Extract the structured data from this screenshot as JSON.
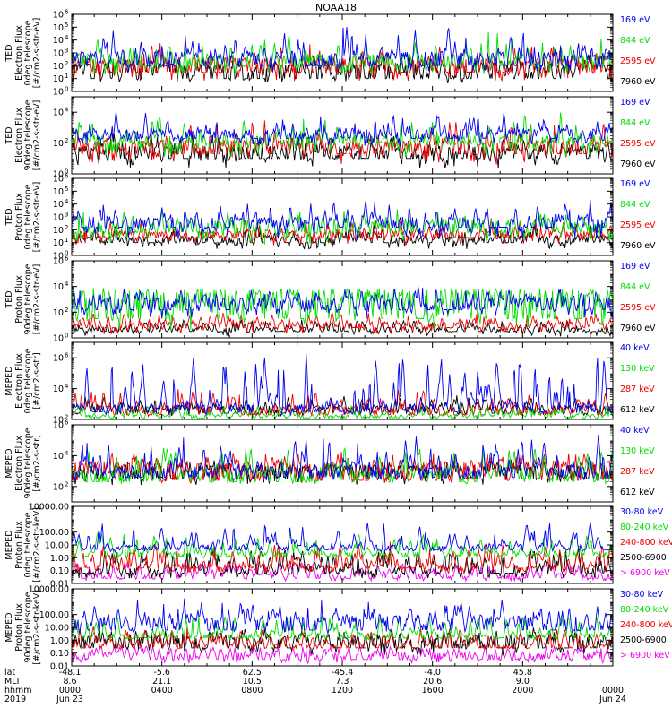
{
  "title": "NOAA18",
  "colors": {
    "black": "#000000",
    "red": "#ee0000",
    "green": "#00dd00",
    "blue": "#0000ee",
    "magenta": "#ee00ee"
  },
  "chart_data": [
    {
      "type": "line",
      "id": "ted-e-0",
      "ylabel": [
        "TED",
        "Electron Flux",
        "0deg telescope",
        "[#/cm2-s-str-eV]"
      ],
      "scale": "log",
      "ylim": [
        1,
        1000000
      ],
      "yticks": [
        {
          "v": 1,
          "b": "10",
          "e": "0"
        },
        {
          "v": 10,
          "b": "10",
          "e": "1"
        },
        {
          "v": 100,
          "b": "10",
          "e": "2"
        },
        {
          "v": 1000,
          "b": "10",
          "e": "3"
        },
        {
          "v": 10000,
          "b": "10",
          "e": "4"
        },
        {
          "v": 100000,
          "b": "10",
          "e": "5"
        },
        {
          "v": 1000000,
          "b": "10",
          "e": "6"
        }
      ],
      "series": [
        {
          "name": "7960 eV",
          "color": "#000000",
          "base": 1,
          "noise": [
            0.6,
            2.2
          ],
          "spike": 6,
          "peak": 3.3,
          "count": 150
        },
        {
          "name": "2595 eV",
          "color": "#ee0000",
          "base": 1.5,
          "noise": [
            0.8,
            2.6
          ],
          "spike": 6,
          "peak": 3.9,
          "count": 150
        },
        {
          "name": "844 eV",
          "color": "#00dd00",
          "base": 2,
          "noise": [
            1.2,
            2.9
          ],
          "spike": 5,
          "peak": 4.7,
          "count": 150
        },
        {
          "name": "169 eV",
          "color": "#0000ee",
          "base": 2,
          "noise": [
            1.5,
            3.1
          ],
          "spike": 5,
          "peak": 5.4,
          "count": 150
        }
      ]
    },
    {
      "type": "line",
      "id": "ted-e-90",
      "ylabel": [
        "TED",
        "Electron Flux",
        "90deg telescope",
        "[#/cm2-s-str-eV]"
      ],
      "scale": "log",
      "ylim": [
        1,
        100000
      ],
      "yticks": [
        {
          "v": 1,
          "b": "10",
          "e": "0"
        },
        {
          "v": 100,
          "b": "10",
          "e": "2"
        },
        {
          "v": 10000,
          "b": "10",
          "e": "4"
        }
      ],
      "series": [
        {
          "name": "7960 eV",
          "color": "#000000",
          "base": 1,
          "noise": [
            0.3,
            1.8
          ],
          "spike": 6,
          "peak": 3.0,
          "count": 150
        },
        {
          "name": "2595 eV",
          "color": "#ee0000",
          "base": 1.3,
          "noise": [
            0.6,
            2.2
          ],
          "spike": 6,
          "peak": 3.6,
          "count": 150
        },
        {
          "name": "844 eV",
          "color": "#00dd00",
          "base": 2,
          "noise": [
            1.1,
            2.5
          ],
          "spike": 5,
          "peak": 4.3,
          "count": 150
        },
        {
          "name": "169 eV",
          "color": "#0000ee",
          "base": 2.3,
          "noise": [
            1.8,
            2.9
          ],
          "spike": 5,
          "peak": 4.2,
          "count": 150
        }
      ]
    },
    {
      "type": "line",
      "id": "ted-p-0",
      "ylabel": [
        "TED",
        "Proton Flux",
        "0deg telescope",
        "[#/cm2-s-str-eV]"
      ],
      "scale": "log",
      "ylim": [
        1,
        1000000
      ],
      "yticks": [
        {
          "v": 1,
          "b": "10",
          "e": "0"
        },
        {
          "v": 10,
          "b": "10",
          "e": "1"
        },
        {
          "v": 100,
          "b": "10",
          "e": "2"
        },
        {
          "v": 1000,
          "b": "10",
          "e": "3"
        },
        {
          "v": 10000,
          "b": "10",
          "e": "4"
        },
        {
          "v": 100000,
          "b": "10",
          "e": "5"
        },
        {
          "v": 1000000,
          "b": "10",
          "e": "6"
        }
      ],
      "series": [
        {
          "name": "7960 eV",
          "color": "#000000",
          "base": 1,
          "noise": [
            0.5,
            1.5
          ],
          "spike": 4,
          "peak": 2.5,
          "count": 150
        },
        {
          "name": "2595 eV",
          "color": "#ee0000",
          "base": 1.4,
          "noise": [
            0.8,
            1.9
          ],
          "spike": 4,
          "peak": 3.0,
          "count": 150
        },
        {
          "name": "844 eV",
          "color": "#00dd00",
          "base": 1.8,
          "noise": [
            0.9,
            2.6
          ],
          "spike": 3,
          "peak": 3.6,
          "count": 150
        },
        {
          "name": "169 eV",
          "color": "#0000ee",
          "base": 2.2,
          "noise": [
            1.3,
            3.0
          ],
          "spike": 3,
          "peak": 4.4,
          "count": 150
        }
      ]
    },
    {
      "type": "line",
      "id": "ted-p-90",
      "ylabel": [
        "TED",
        "Proton Flux",
        "90deg telescope",
        "[#/cm2-s-str-eV]"
      ],
      "scale": "log",
      "ylim": [
        1,
        1000000
      ],
      "yticks": [
        {
          "v": 1,
          "b": "10",
          "e": "0"
        },
        {
          "v": 100,
          "b": "10",
          "e": "2"
        },
        {
          "v": 10000,
          "b": "10",
          "e": "4"
        },
        {
          "v": 1000000,
          "b": "10",
          "e": "6"
        }
      ],
      "series": [
        {
          "name": "7960 eV",
          "color": "#000000",
          "base": 0.5,
          "noise": [
            0.1,
            0.8
          ],
          "spike": 2,
          "peak": 1.5,
          "count": 150
        },
        {
          "name": "2595 eV",
          "color": "#ee0000",
          "base": 0.8,
          "noise": [
            0.3,
            1.2
          ],
          "spike": 2,
          "peak": 2.0,
          "count": 150
        },
        {
          "name": "844 eV",
          "color": "#00dd00",
          "base": 1.5,
          "noise": [
            0.6,
            3.8
          ],
          "spike": 2,
          "peak": 3.9,
          "count": 150
        },
        {
          "name": "169 eV",
          "color": "#0000ee",
          "base": 2.2,
          "noise": [
            1.5,
            3.1
          ],
          "spike": 2,
          "peak": 4.0,
          "count": 150
        }
      ]
    },
    {
      "type": "line",
      "id": "meped-e-0",
      "ylabel": [
        "MEPED",
        "Electron Flux",
        "0deg telescope",
        "[#/cm2-s-str]"
      ],
      "scale": "log",
      "ylim": [
        100,
        10000000
      ],
      "yticks": [
        {
          "v": 100,
          "b": "10",
          "e": "2"
        },
        {
          "v": 10000,
          "b": "10",
          "e": "4"
        },
        {
          "v": 1000000,
          "b": "10",
          "e": "6"
        }
      ],
      "series": [
        {
          "name": "612 keV",
          "color": "#000000",
          "base": 2.4,
          "noise": [
            2.2,
            2.9
          ],
          "spike": 3,
          "peak": 3.6,
          "count": 150
        },
        {
          "name": "287 keV",
          "color": "#ee0000",
          "base": 2.3,
          "noise": [
            2.2,
            2.8
          ],
          "spike": 3,
          "peak": 4.0,
          "count": 150
        },
        {
          "name": "130 keV",
          "color": "#00dd00",
          "base": 2.1,
          "noise": [
            2.05,
            2.3
          ],
          "spike": 2,
          "peak": 3.0,
          "count": 150
        },
        {
          "name": "40 keV",
          "color": "#0000ee",
          "base": 2.5,
          "noise": [
            2.3,
            3.0
          ],
          "spike": 3,
          "peak": 6.6,
          "count": 150
        }
      ]
    },
    {
      "type": "line",
      "id": "meped-e-90",
      "ylabel": [
        "MEPED",
        "Electron Flux",
        "90deg telescope",
        "[#/cm2-s-str]"
      ],
      "scale": "log",
      "ylim": [
        10,
        1000000
      ],
      "yticks": [
        {
          "v": 100,
          "b": "10",
          "e": "2"
        },
        {
          "v": 10000,
          "b": "10",
          "e": "4"
        },
        {
          "v": 1000000,
          "b": "10",
          "e": "6"
        }
      ],
      "series": [
        {
          "name": "612 keV",
          "color": "#000000",
          "base": 2.5,
          "noise": [
            2.1,
            3.4
          ],
          "spike": 3,
          "peak": 3.8,
          "count": 150
        },
        {
          "name": "287 keV",
          "color": "#ee0000",
          "base": 2.4,
          "noise": [
            2.2,
            3.6
          ],
          "spike": 3,
          "peak": 4.4,
          "count": 150
        },
        {
          "name": "130 keV",
          "color": "#00dd00",
          "base": 2.3,
          "noise": [
            2.15,
            3.0
          ],
          "spike": 3,
          "peak": 4.9,
          "count": 150
        },
        {
          "name": "40 keV",
          "color": "#0000ee",
          "base": 2.6,
          "noise": [
            2.4,
            3.3
          ],
          "spike": 3,
          "peak": 5.4,
          "count": 150
        }
      ]
    },
    {
      "type": "line",
      "id": "meped-p-0",
      "ylabel": [
        "MEPED",
        "Proton Flux",
        "0deg telescope",
        "[#/cm2-s-str-keV]"
      ],
      "scale": "log",
      "ylim": [
        0.01,
        10000
      ],
      "yticks": [
        {
          "v": 10000,
          "t": "10000.00"
        },
        {
          "v": 100,
          "t": "100.00"
        },
        {
          "v": 10,
          "t": "10.00"
        },
        {
          "v": 1,
          "t": "1.00"
        },
        {
          "v": 0.1,
          "t": "0.10"
        },
        {
          "v": 0.01,
          "t": "0.01"
        }
      ],
      "series": [
        {
          "name": "> 6900 keV",
          "color": "#ee00ee",
          "base": -1.6,
          "noise": [
            -1.8,
            -1.2
          ],
          "spike": 1,
          "peak": -0.3,
          "count": 150
        },
        {
          "name": "2500-6900",
          "color": "#000000",
          "base": -1.2,
          "noise": [
            -1.6,
            -0.8
          ],
          "spike": 1,
          "peak": 0.8,
          "count": 150
        },
        {
          "name": "240-800 keV",
          "color": "#ee0000",
          "base": -0.8,
          "noise": [
            -1.2,
            -0.5
          ],
          "spike": 2,
          "peak": 1.3,
          "count": 150
        },
        {
          "name": "80-240 keV",
          "color": "#00dd00",
          "base": 0.1,
          "noise": [
            0.0,
            0.4
          ],
          "spike": 2,
          "peak": 2.0,
          "count": 150
        },
        {
          "name": "30-80 keV",
          "color": "#0000ee",
          "base": 0.6,
          "noise": [
            0.45,
            1.0
          ],
          "spike": 3,
          "peak": 3.0,
          "count": 150
        }
      ]
    },
    {
      "type": "line",
      "id": "meped-p-90",
      "ylabel": [
        "MEPED",
        "Proton Flux",
        "90deg telescope",
        "[#/cm2-s-str-keV]"
      ],
      "scale": "log",
      "ylim": [
        0.01,
        10000
      ],
      "yticks": [
        {
          "v": 10000,
          "t": "10000.00"
        },
        {
          "v": 100,
          "t": "100.00"
        },
        {
          "v": 10,
          "t": "10.00"
        },
        {
          "v": 1,
          "t": "1.00"
        },
        {
          "v": 0.1,
          "t": "0.10"
        },
        {
          "v": 0.01,
          "t": "0.01"
        }
      ],
      "series": [
        {
          "name": "> 6900 keV",
          "color": "#ee00ee",
          "base": -1.5,
          "noise": [
            -1.8,
            -1.0
          ],
          "spike": 1,
          "peak": -0.4,
          "count": 150
        },
        {
          "name": "2500-6900",
          "color": "#000000",
          "base": -0.6,
          "noise": [
            -1.2,
            0.3
          ],
          "spike": 2,
          "peak": 1.0,
          "count": 150
        },
        {
          "name": "240-800 keV",
          "color": "#ee0000",
          "base": -0.6,
          "noise": [
            -0.7,
            -0.3
          ],
          "spike": 2,
          "peak": 1.1,
          "count": 150
        },
        {
          "name": "80-240 keV",
          "color": "#00dd00",
          "base": 0.2,
          "noise": [
            0.05,
            0.45
          ],
          "spike": 2,
          "peak": 2.0,
          "count": 150
        },
        {
          "name": "30-80 keV",
          "color": "#0000ee",
          "base": 0.8,
          "noise": [
            0.5,
            1.9
          ],
          "spike": 3,
          "peak": 3.4,
          "count": 150
        }
      ]
    }
  ],
  "x_axis": {
    "row_labels": [
      "lat",
      "MLT",
      "hhmm",
      "2019"
    ],
    "ticks": [
      {
        "lat": "-48.1",
        "mlt": "8.6",
        "hhmm": "0000",
        "date": "Jun 23"
      },
      {
        "lat": "-5.6",
        "mlt": "21.1",
        "hhmm": "0400",
        "date": ""
      },
      {
        "lat": "62.5",
        "mlt": "10.5",
        "hhmm": "0800",
        "date": ""
      },
      {
        "lat": "-45.4",
        "mlt": "7.3",
        "hhmm": "1200",
        "date": ""
      },
      {
        "lat": "-4.0",
        "mlt": "20.6",
        "hhmm": "1600",
        "date": ""
      },
      {
        "lat": "45.8",
        "mlt": "9.0",
        "hhmm": "2000",
        "date": ""
      },
      {
        "lat": "",
        "mlt": "",
        "hhmm": "0000",
        "date": "Jun 24"
      }
    ]
  }
}
